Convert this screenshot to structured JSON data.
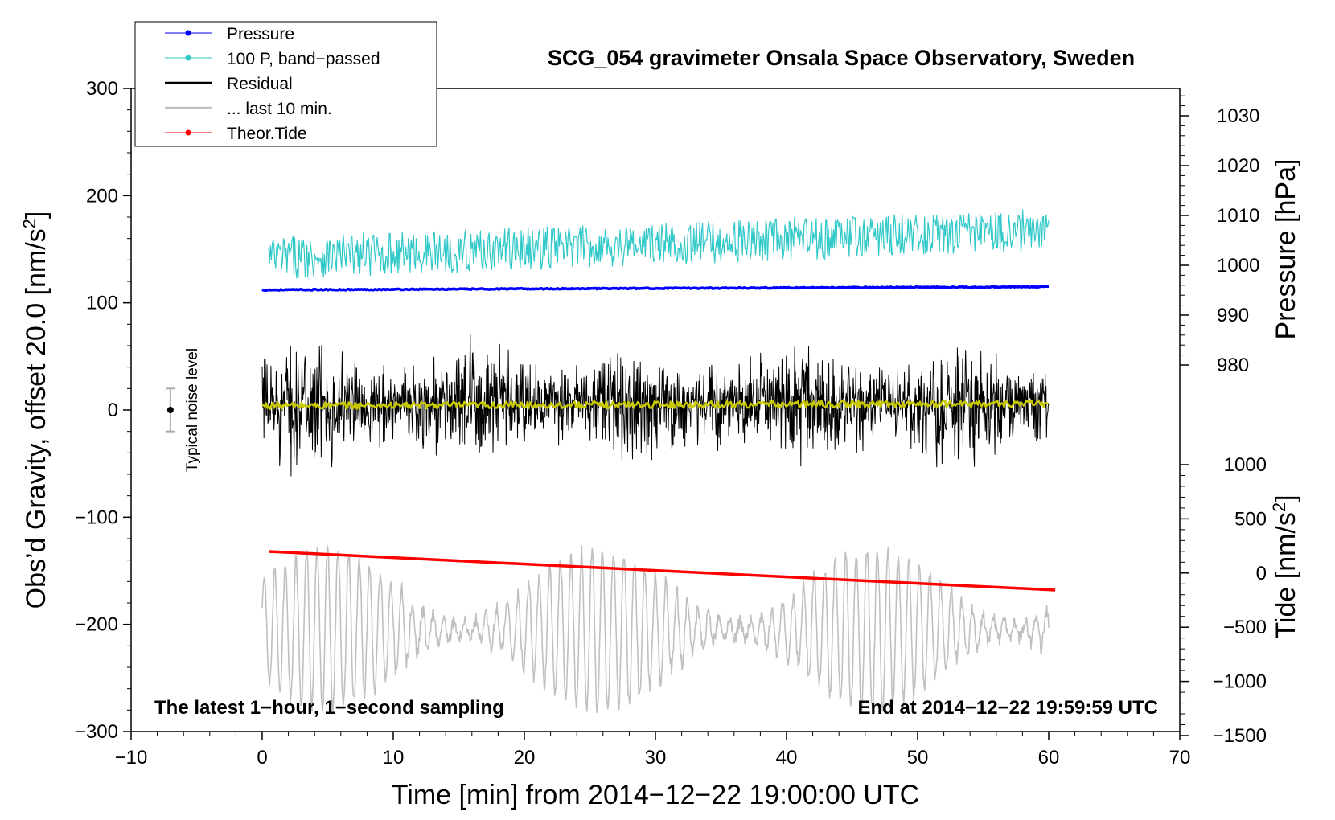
{
  "chart_data": {
    "type": "line",
    "title": "SCG_054 gravimeter Onsala Space Observatory, Sweden",
    "xlabel": "Time [min] from 2014−12−22 19:00:00 UTC",
    "ylabel": "Obs’d Gravity, offset 20.0 [nm/s²]",
    "ylabel_main": "Obs’d Gravity, offset 20.0 [nm/s",
    "ylabel_sup": "2",
    "ylabel_end": "]",
    "xlim": [
      -10,
      70
    ],
    "ylim": [
      -300,
      300
    ],
    "x_ticks": [
      "−10",
      "0",
      "10",
      "20",
      "30",
      "40",
      "50",
      "60",
      "70"
    ],
    "y_ticks": [
      "−300",
      "−200",
      "−100",
      "0",
      "100",
      "200",
      "300"
    ],
    "right_axis_pressure": {
      "label": "Pressure [hPa]",
      "ticks": [
        "1030",
        "1020",
        "1010",
        "1000",
        "990",
        "980"
      ]
    },
    "right_axis_tide": {
      "label": "Tide [nm/s²]",
      "label_main": "Tide [nm/s",
      "label_sup": "2",
      "label_end": "]",
      "ticks": [
        "1000",
        "500",
        "0",
        "−500",
        "−1000",
        "−1500"
      ]
    },
    "legend": [
      {
        "label": "Pressure",
        "color": "#0000ff",
        "marker": true
      },
      {
        "label": "100 P, band−passed",
        "color": "#30c8c8",
        "marker": true
      },
      {
        "label": "Residual",
        "color": "#000000",
        "marker": false
      },
      {
        "label": "... last 10 min.",
        "color": "#c0c0c0",
        "marker": false
      },
      {
        "label": "Theor.Tide",
        "color": "#ff0000",
        "marker": true
      }
    ],
    "noise_label": "Typical noise level",
    "noise_level": {
      "center": 0,
      "half_range": 20,
      "x": -7
    },
    "annotation_left": "The latest 1−hour, 1−second sampling",
    "annotation_right": "End at 2014−12−22 19:59:59 UTC",
    "series": [
      {
        "name": "Pressure",
        "color": "#0000ff",
        "axis": "left",
        "x_range": [
          0,
          60
        ],
        "start": 112,
        "end": 115,
        "noise_amplitude": 1
      },
      {
        "name": "100 P, band−passed",
        "color": "#30c8c8",
        "axis": "left",
        "x_range": [
          0.5,
          60
        ],
        "start": 142,
        "end": 168,
        "noise_amplitude": 25
      },
      {
        "name": "Residual",
        "color": "#000000",
        "axis": "left",
        "x_range": [
          0,
          60
        ],
        "start": 5,
        "end": 5,
        "noise_amplitude": 110
      },
      {
        "name": "Smoothed residual",
        "color": "#c8c800",
        "axis": "left",
        "x_range": [
          0,
          60
        ],
        "start": 4,
        "end": 6,
        "noise_amplitude": 4
      },
      {
        "name": "... last 10 min.",
        "color": "#c0c0c0",
        "axis": "left",
        "x_range": [
          0,
          60
        ],
        "start": -205,
        "end": -205,
        "noise_amplitude": 75
      },
      {
        "name": "Theor.Tide",
        "color": "#ff0000",
        "axis": "left",
        "x_range": [
          0.5,
          60.5
        ],
        "start": -132,
        "end": -168,
        "noise_amplitude": 0
      }
    ]
  }
}
